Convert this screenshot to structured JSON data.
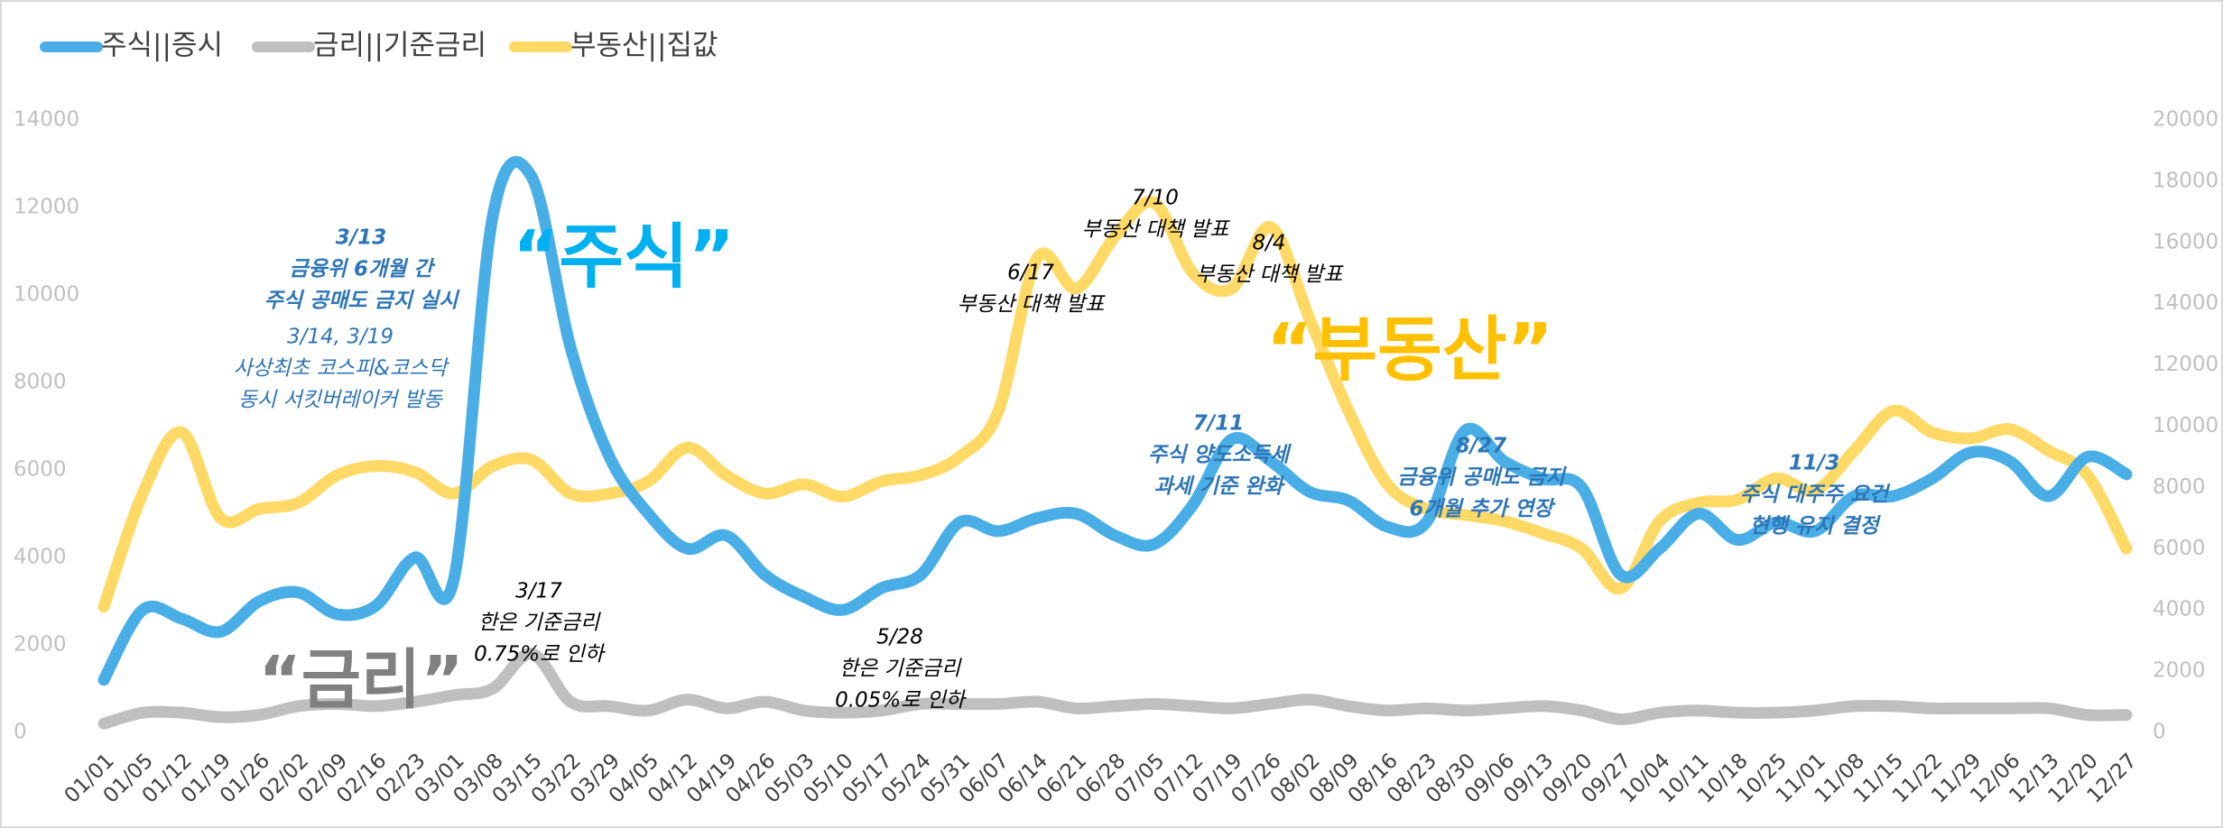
{
  "chart_data": {
    "type": "line",
    "categories": [
      "01/01",
      "01/05",
      "01/12",
      "01/19",
      "01/26",
      "02/02",
      "02/09",
      "02/16",
      "02/23",
      "03/01",
      "03/08",
      "03/15",
      "03/22",
      "03/29",
      "04/05",
      "04/12",
      "04/19",
      "04/26",
      "05/03",
      "05/10",
      "05/17",
      "05/24",
      "05/31",
      "06/07",
      "06/14",
      "06/21",
      "06/28",
      "07/05",
      "07/12",
      "07/19",
      "07/26",
      "08/02",
      "08/09",
      "08/16",
      "08/23",
      "08/30",
      "09/06",
      "09/13",
      "09/20",
      "09/27",
      "10/04",
      "10/11",
      "10/18",
      "10/25",
      "11/01",
      "11/08",
      "11/15",
      "11/22",
      "11/29",
      "12/06",
      "12/13",
      "12/20",
      "12/27"
    ],
    "series": [
      {
        "name": "주식||증시",
        "color": "#4aaee6",
        "axis": "y",
        "values": [
          1200,
          2800,
          2600,
          2300,
          3000,
          3200,
          2700,
          2900,
          4000,
          3500,
          11800,
          12700,
          8800,
          6300,
          5000,
          4200,
          4500,
          3600,
          3100,
          2800,
          3300,
          3600,
          4800,
          4600,
          4900,
          5000,
          4500,
          4300,
          5200,
          6700,
          6200,
          5500,
          5300,
          4700,
          4800,
          6900,
          6200,
          5800,
          5600,
          3600,
          4200,
          5000,
          4400,
          4800,
          4600,
          5400,
          5400,
          5800,
          6400,
          6200,
          5400,
          6300,
          5900
        ]
      },
      {
        "name": "금리||기준금리",
        "color": "#bfbfbf",
        "axis": "y",
        "values": [
          200,
          450,
          450,
          350,
          400,
          600,
          650,
          600,
          700,
          850,
          1000,
          1800,
          700,
          600,
          500,
          750,
          550,
          700,
          500,
          450,
          500,
          650,
          650,
          650,
          700,
          550,
          600,
          650,
          600,
          550,
          650,
          750,
          600,
          500,
          550,
          500,
          550,
          600,
          500,
          300,
          450,
          500,
          450,
          450,
          500,
          600,
          600,
          550,
          550,
          550,
          550,
          400,
          400
        ]
      },
      {
        "name": "부동산||집값",
        "color": "#ffd966",
        "axis": "y2",
        "values": [
          4100,
          7800,
          9800,
          7000,
          7300,
          7500,
          8400,
          8700,
          8500,
          7800,
          8700,
          8900,
          7800,
          7800,
          8200,
          9300,
          8400,
          7800,
          8100,
          7700,
          8200,
          8400,
          9000,
          10500,
          15500,
          14500,
          16200,
          17300,
          15000,
          14500,
          16500,
          13500,
          10500,
          8100,
          7300,
          7100,
          6900,
          6500,
          6000,
          4700,
          6900,
          7500,
          7600,
          8300,
          7900,
          9200,
          10500,
          9800,
          9600,
          9900,
          9200,
          8400,
          6000
        ]
      }
    ],
    "ylim": [
      0,
      14000
    ],
    "yticks": [
      0,
      2000,
      4000,
      6000,
      8000,
      10000,
      12000,
      14000
    ],
    "y2lim": [
      0,
      20000
    ],
    "y2ticks": [
      0,
      2000,
      4000,
      6000,
      8000,
      10000,
      12000,
      14000,
      16000,
      18000,
      20000
    ],
    "legend": "top-left",
    "big_labels": [
      "“주식”",
      "“부동산”",
      "“금리”"
    ],
    "annotations": [
      [
        "3/13",
        "금융위 6개월 간",
        "주식 공매도 금지 실시"
      ],
      [
        "3/14, 3/19",
        "사상최초 코스피&코스닥",
        "동시 서킷버레이커 발동"
      ],
      [
        "3/17",
        "한은 기준금리",
        "0.75%로 인하"
      ],
      [
        "5/28",
        "한은 기준금리",
        "0.05%로 인하"
      ],
      [
        "6/17",
        "부동산 대책 발표"
      ],
      [
        "7/10",
        "부동산 대책 발표"
      ],
      [
        "8/4",
        "부동산 대책 발표"
      ],
      [
        "7/11",
        "주식  양도소득세",
        "과세 기준 완화"
      ],
      [
        "8/27",
        "금융위 공매도 금지",
        "6개월 추가 연장"
      ],
      [
        "11/3",
        "주식 대주주 요건",
        "현행 유지 결정"
      ]
    ]
  }
}
